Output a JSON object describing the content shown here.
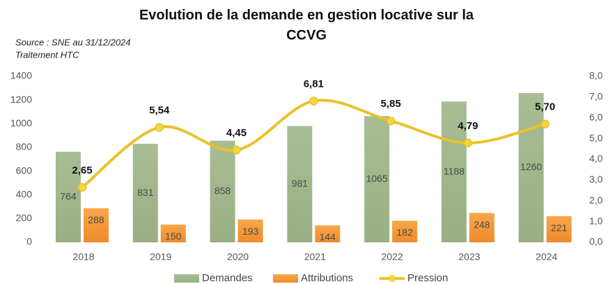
{
  "chart_data": {
    "type": "bar_line",
    "title": "Evolution de la demande en gestion locative sur la CCVG",
    "annotations": [
      "Source : SNE au 31/12/2024",
      "Traitement HTC"
    ],
    "categories": [
      "2018",
      "2019",
      "2020",
      "2021",
      "2022",
      "2023",
      "2024"
    ],
    "series": [
      {
        "name": "Demandes",
        "type": "bar",
        "color": "#9db487",
        "values": [
          764,
          831,
          858,
          981,
          1065,
          1188,
          1260
        ]
      },
      {
        "name": "Attributions",
        "type": "bar",
        "color": "#f39c3f",
        "values": [
          288,
          150,
          193,
          144,
          182,
          248,
          221
        ]
      },
      {
        "name": "Pression",
        "type": "line",
        "axis": "y2",
        "color": "#e8c22a",
        "values": [
          2.65,
          5.54,
          4.45,
          6.81,
          5.85,
          4.79,
          5.7
        ],
        "value_labels": [
          "2,65",
          "5,54",
          "4,45",
          "6,81",
          "5,85",
          "4,79",
          "5,70"
        ]
      }
    ],
    "ylim": [
      0,
      1400
    ],
    "yticks": [
      0,
      200,
      400,
      600,
      800,
      1000,
      1200,
      1400
    ],
    "y2lim": [
      0,
      8
    ],
    "y2ticks": [
      {
        "value": 0,
        "label": "0,0"
      },
      {
        "value": 1,
        "label": "1,0"
      },
      {
        "value": 2,
        "label": "2,0"
      },
      {
        "value": 3,
        "label": "3,0"
      },
      {
        "value": 4,
        "label": "4,0"
      },
      {
        "value": 5,
        "label": "5,0"
      },
      {
        "value": 6,
        "label": "6,0"
      },
      {
        "value": 7,
        "label": "7,0"
      },
      {
        "value": 8,
        "label": "8,0"
      }
    ],
    "grid": false,
    "legend": "bottom"
  }
}
